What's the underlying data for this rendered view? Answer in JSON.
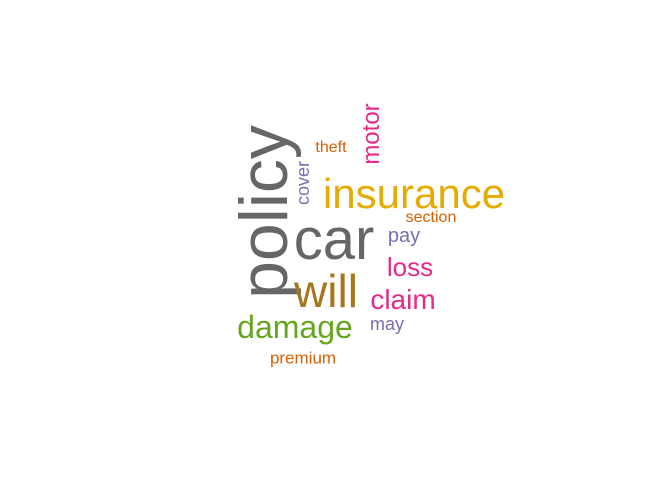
{
  "words": [
    {
      "text": "policy",
      "color": "#666666",
      "rotate": true
    },
    {
      "text": "car",
      "color": "#666666"
    },
    {
      "text": "insurance",
      "color": "#E6AB02"
    },
    {
      "text": "will",
      "color": "#A6761D"
    },
    {
      "text": "damage",
      "color": "#66A61E"
    },
    {
      "text": "claim",
      "color": "#E7298A"
    },
    {
      "text": "loss",
      "color": "#E7298A"
    },
    {
      "text": "motor",
      "color": "#E7298A",
      "rotate": true
    },
    {
      "text": "cover",
      "color": "#7570B3",
      "rotate": true
    },
    {
      "text": "pay",
      "color": "#7570B3"
    },
    {
      "text": "may",
      "color": "#7570B3"
    },
    {
      "text": "section",
      "color": "#D95F02"
    },
    {
      "text": "theft",
      "color": "#D95F02"
    },
    {
      "text": "premium",
      "color": "#D95F02"
    }
  ]
}
